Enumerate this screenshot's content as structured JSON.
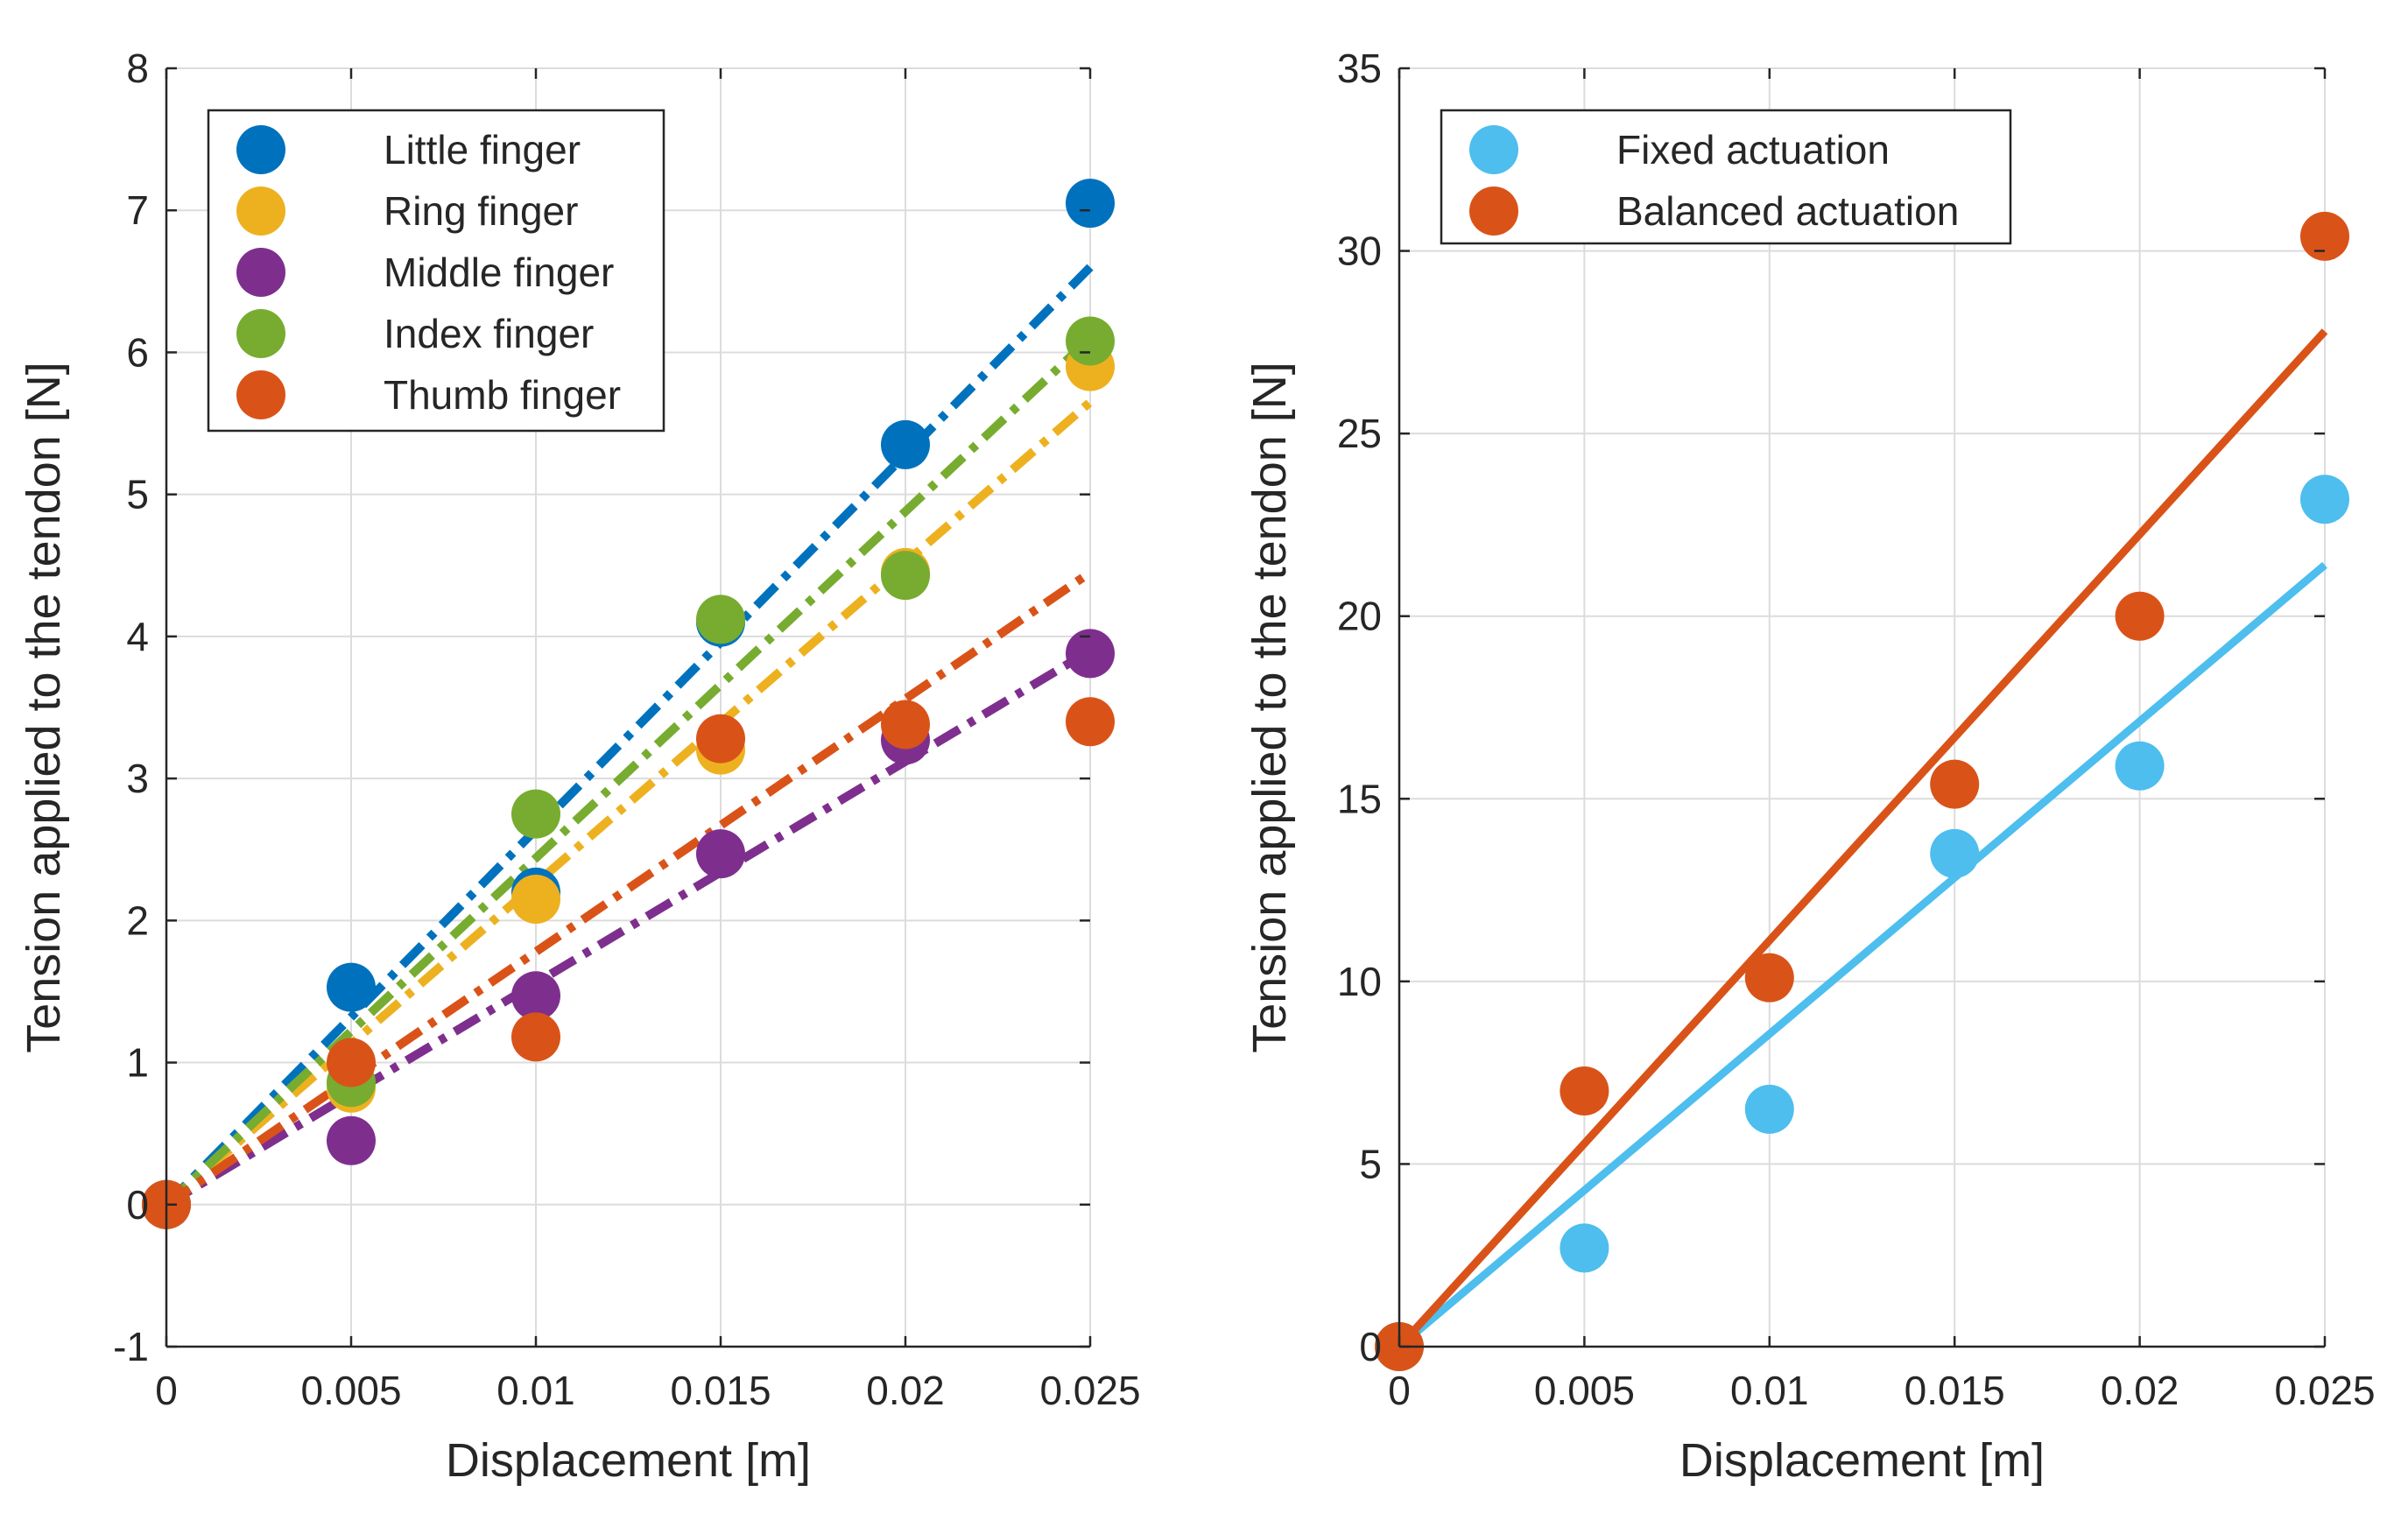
{
  "chart_data": [
    {
      "type": "scatter",
      "title": "",
      "xlabel": "Displacement [m]",
      "ylabel": "Tension applied to the tendon [N]",
      "xlim": [
        0,
        0.025
      ],
      "ylim": [
        -1,
        8
      ],
      "xticks": [
        0,
        0.005,
        0.01,
        0.015,
        0.02,
        0.025
      ],
      "xtick_labels": [
        "0",
        "0.005",
        "0.01",
        "0.015",
        "0.02",
        "0.025"
      ],
      "yticks": [
        -1,
        0,
        1,
        2,
        3,
        4,
        5,
        6,
        7,
        8
      ],
      "ytick_labels": [
        "-1",
        "0",
        "1",
        "2",
        "3",
        "4",
        "5",
        "6",
        "7",
        "8"
      ],
      "grid": true,
      "legend_position": "top-left",
      "fit_style": "dash-dot",
      "x": [
        0,
        0.005,
        0.01,
        0.015,
        0.02,
        0.025
      ],
      "series": [
        {
          "name": "Little finger",
          "color": "#0072BD",
          "values": [
            0,
            1.53,
            2.2,
            4.1,
            5.35,
            7.05
          ],
          "fit_end": 6.6
        },
        {
          "name": "Ring finger",
          "color": "#EDB120",
          "values": [
            0,
            0.82,
            2.15,
            3.2,
            4.45,
            5.9
          ],
          "fit_end": 5.65
        },
        {
          "name": "Middle finger",
          "color": "#7E2F8E",
          "values": [
            0,
            0.45,
            1.47,
            2.47,
            3.27,
            3.88
          ],
          "fit_end": 3.9
        },
        {
          "name": "Index finger",
          "color": "#77AC30",
          "values": [
            0,
            0.86,
            2.75,
            4.12,
            4.43,
            6.08
          ],
          "fit_end": 6.1
        },
        {
          "name": "Thumb finger",
          "color": "#D95319",
          "values": [
            0,
            1.0,
            1.18,
            3.28,
            3.38,
            3.4
          ],
          "fit_end": 4.45
        }
      ]
    },
    {
      "type": "scatter",
      "title": "",
      "xlabel": "Displacement [m]",
      "ylabel": "Tension applied to the tendon [N]",
      "xlim": [
        0,
        0.025
      ],
      "ylim": [
        0,
        35
      ],
      "xticks": [
        0,
        0.005,
        0.01,
        0.015,
        0.02,
        0.025
      ],
      "xtick_labels": [
        "0",
        "0.005",
        "0.01",
        "0.015",
        "0.02",
        "0.025"
      ],
      "yticks": [
        0,
        5,
        10,
        15,
        20,
        25,
        30,
        35
      ],
      "ytick_labels": [
        "0",
        "5",
        "10",
        "15",
        "20",
        "25",
        "30",
        "35"
      ],
      "grid": true,
      "legend_position": "top-left",
      "fit_style": "solid",
      "x": [
        0,
        0.005,
        0.01,
        0.015,
        0.02,
        0.025
      ],
      "series": [
        {
          "name": "Fixed actuation",
          "color": "#4DBEEE",
          "values": [
            0,
            2.7,
            6.5,
            13.5,
            15.9,
            23.2
          ],
          "fit_end": 21.4
        },
        {
          "name": "Balanced actuation",
          "color": "#D95319",
          "values": [
            0,
            7.0,
            10.1,
            15.4,
            20.0,
            30.4
          ],
          "fit_end": 27.8
        }
      ]
    }
  ]
}
